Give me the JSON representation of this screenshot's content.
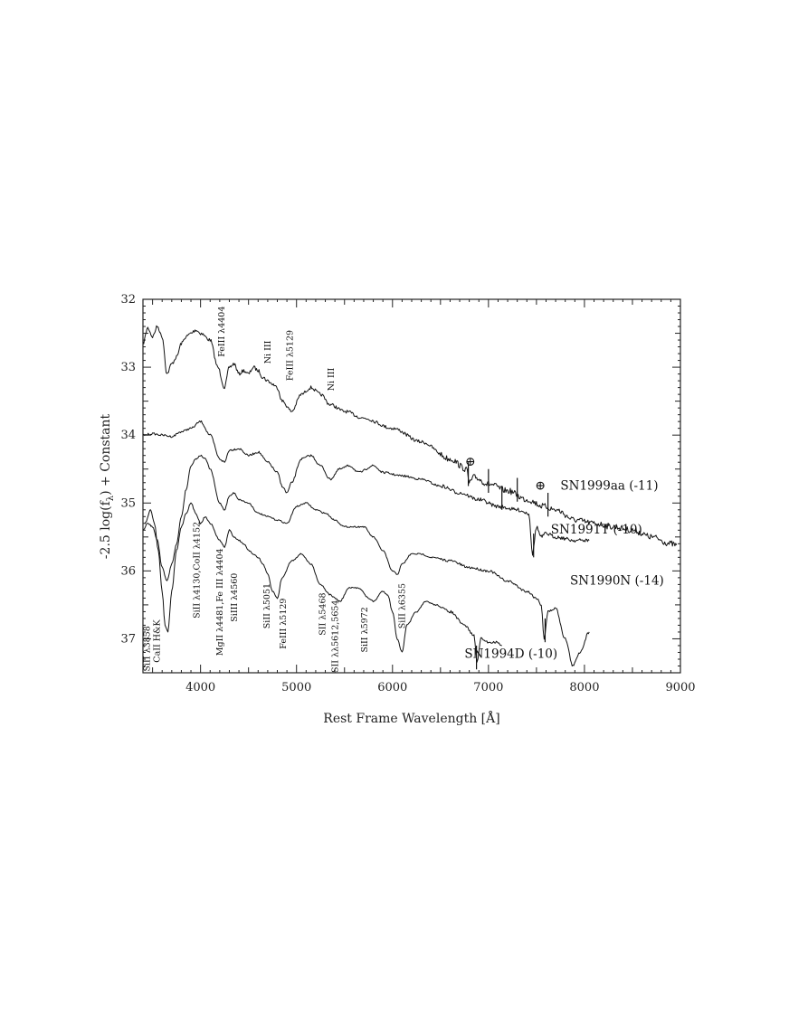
{
  "chart_data": {
    "type": "line",
    "title": "",
    "xlabel": "Rest Frame Wavelength [Å]",
    "ylabel": "-2.5 log(f_λ) + Constant",
    "ylabel_parts": {
      "pre": "-2.5 log(f",
      "sub": "λ",
      "post": ") + Constant"
    },
    "xlim": [
      3400,
      9000
    ],
    "ylim": [
      37.5,
      32
    ],
    "y_inverted": true,
    "grid": false,
    "x_ticks": [
      {
        "value": 4000,
        "label": "4000"
      },
      {
        "value": 5000,
        "label": "5000"
      },
      {
        "value": 6000,
        "label": "6000"
      },
      {
        "value": 7000,
        "label": "7000"
      },
      {
        "value": 8000,
        "label": "8000"
      },
      {
        "value": 9000,
        "label": "9000"
      }
    ],
    "y_ticks": [
      {
        "value": 32,
        "label": "32"
      },
      {
        "value": 33,
        "label": "33"
      },
      {
        "value": 34,
        "label": "34"
      },
      {
        "value": 35,
        "label": "35"
      },
      {
        "value": 36,
        "label": "36"
      },
      {
        "value": 37,
        "label": "37"
      }
    ],
    "series": [
      {
        "name": "SN1999aa (-11)",
        "label_at": {
          "x": 7750,
          "y": 34.8
        },
        "noise": 0.05,
        "points": [
          [
            3400,
            32.65
          ],
          [
            3450,
            32.42
          ],
          [
            3500,
            32.55
          ],
          [
            3550,
            32.4
          ],
          [
            3600,
            32.55
          ],
          [
            3650,
            33.1
          ],
          [
            3700,
            32.95
          ],
          [
            3750,
            32.85
          ],
          [
            3800,
            32.65
          ],
          [
            3850,
            32.55
          ],
          [
            3900,
            32.5
          ],
          [
            3950,
            32.45
          ],
          [
            4000,
            32.5
          ],
          [
            4100,
            32.6
          ],
          [
            4180,
            33.0
          ],
          [
            4250,
            33.3
          ],
          [
            4300,
            33.0
          ],
          [
            4350,
            32.95
          ],
          [
            4400,
            33.1
          ],
          [
            4450,
            33.05
          ],
          [
            4500,
            33.1
          ],
          [
            4550,
            33.0
          ],
          [
            4600,
            33.05
          ],
          [
            4650,
            33.15
          ],
          [
            4700,
            33.2
          ],
          [
            4750,
            33.25
          ],
          [
            4800,
            33.3
          ],
          [
            4850,
            33.5
          ],
          [
            4950,
            33.65
          ],
          [
            5050,
            33.4
          ],
          [
            5150,
            33.3
          ],
          [
            5250,
            33.4
          ],
          [
            5350,
            33.55
          ],
          [
            5500,
            33.65
          ],
          [
            5700,
            33.75
          ],
          [
            6000,
            33.9
          ],
          [
            6300,
            34.1
          ],
          [
            6600,
            34.35
          ],
          [
            6770,
            34.5
          ],
          [
            6800,
            34.7
          ],
          [
            6850,
            34.62
          ],
          [
            7000,
            34.72
          ],
          [
            7200,
            34.82
          ],
          [
            7400,
            34.95
          ],
          [
            7580,
            35.05
          ],
          [
            7700,
            35.1
          ],
          [
            7900,
            35.25
          ],
          [
            8100,
            35.3
          ],
          [
            8300,
            35.35
          ],
          [
            8500,
            35.4
          ],
          [
            8700,
            35.5
          ],
          [
            8900,
            35.6
          ],
          [
            8960,
            35.62
          ]
        ],
        "spikes": [
          [
            6790,
            34.75
          ],
          [
            7000,
            34.85
          ],
          [
            7300,
            34.98
          ],
          [
            7620,
            35.2
          ]
        ]
      },
      {
        "name": "SN1991T (-10)",
        "label_at": {
          "x": 7650,
          "y": 35.45
        },
        "noise": 0.03,
        "points": [
          [
            3400,
            34.0
          ],
          [
            3500,
            33.98
          ],
          [
            3600,
            34.0
          ],
          [
            3700,
            34.02
          ],
          [
            3800,
            33.95
          ],
          [
            3900,
            33.9
          ],
          [
            4000,
            33.8
          ],
          [
            4100,
            34.0
          ],
          [
            4200,
            34.35
          ],
          [
            4250,
            34.4
          ],
          [
            4300,
            34.22
          ],
          [
            4400,
            34.2
          ],
          [
            4500,
            34.3
          ],
          [
            4600,
            34.25
          ],
          [
            4700,
            34.4
          ],
          [
            4800,
            34.55
          ],
          [
            4850,
            34.75
          ],
          [
            4900,
            34.85
          ],
          [
            4950,
            34.7
          ],
          [
            5050,
            34.35
          ],
          [
            5150,
            34.3
          ],
          [
            5250,
            34.45
          ],
          [
            5350,
            34.65
          ],
          [
            5450,
            34.5
          ],
          [
            5550,
            34.45
          ],
          [
            5650,
            34.55
          ],
          [
            5800,
            34.45
          ],
          [
            5900,
            34.55
          ],
          [
            6100,
            34.6
          ],
          [
            6300,
            34.65
          ],
          [
            6500,
            34.75
          ],
          [
            6700,
            34.85
          ],
          [
            6900,
            34.95
          ],
          [
            7100,
            35.05
          ],
          [
            7300,
            35.1
          ],
          [
            7420,
            35.15
          ],
          [
            7460,
            35.75
          ],
          [
            7500,
            35.35
          ],
          [
            7550,
            35.5
          ],
          [
            7600,
            35.45
          ],
          [
            7700,
            35.5
          ],
          [
            7900,
            35.55
          ],
          [
            8050,
            35.55
          ]
        ],
        "spikes": [
          [
            7470,
            35.8
          ],
          [
            7140,
            35.1
          ]
        ]
      },
      {
        "name": "SN1990N (-14)",
        "label_at": {
          "x": 7850,
          "y": 36.2
        },
        "noise": 0.02,
        "points": [
          [
            3400,
            35.4
          ],
          [
            3450,
            35.3
          ],
          [
            3500,
            35.35
          ],
          [
            3550,
            35.55
          ],
          [
            3600,
            35.95
          ],
          [
            3650,
            36.15
          ],
          [
            3700,
            35.9
          ],
          [
            3750,
            35.6
          ],
          [
            3800,
            35.2
          ],
          [
            3850,
            34.8
          ],
          [
            3900,
            34.45
          ],
          [
            3950,
            34.35
          ],
          [
            4000,
            34.3
          ],
          [
            4050,
            34.35
          ],
          [
            4100,
            34.5
          ],
          [
            4200,
            35.0
          ],
          [
            4250,
            35.1
          ],
          [
            4300,
            34.9
          ],
          [
            4350,
            34.85
          ],
          [
            4400,
            34.95
          ],
          [
            4500,
            35.0
          ],
          [
            4600,
            35.15
          ],
          [
            4700,
            35.2
          ],
          [
            4800,
            35.25
          ],
          [
            4900,
            35.3
          ],
          [
            5000,
            35.05
          ],
          [
            5100,
            35.0
          ],
          [
            5200,
            35.1
          ],
          [
            5300,
            35.15
          ],
          [
            5400,
            35.25
          ],
          [
            5500,
            35.35
          ],
          [
            5600,
            35.35
          ],
          [
            5700,
            35.35
          ],
          [
            5800,
            35.5
          ],
          [
            5900,
            35.7
          ],
          [
            6000,
            36.0
          ],
          [
            6050,
            36.05
          ],
          [
            6100,
            35.9
          ],
          [
            6200,
            35.75
          ],
          [
            6300,
            35.75
          ],
          [
            6400,
            35.8
          ],
          [
            6600,
            35.85
          ],
          [
            6800,
            35.95
          ],
          [
            7000,
            36.0
          ],
          [
            7200,
            36.15
          ],
          [
            7400,
            36.3
          ],
          [
            7500,
            36.4
          ],
          [
            7550,
            36.5
          ],
          [
            7580,
            37.0
          ],
          [
            7620,
            36.6
          ],
          [
            7700,
            36.55
          ],
          [
            7800,
            37.0
          ],
          [
            7880,
            37.4
          ],
          [
            7950,
            37.2
          ],
          [
            8050,
            36.9
          ]
        ],
        "spikes": [
          [
            7590,
            37.05
          ]
        ]
      },
      {
        "name": "SN1994D (-10)",
        "label_at": {
          "x": 6750,
          "y": 37.28
        },
        "noise": 0.02,
        "points": [
          [
            3420,
            35.3
          ],
          [
            3480,
            35.1
          ],
          [
            3520,
            35.3
          ],
          [
            3560,
            35.7
          ],
          [
            3600,
            36.3
          ],
          [
            3630,
            36.8
          ],
          [
            3660,
            36.9
          ],
          [
            3700,
            36.3
          ],
          [
            3750,
            35.7
          ],
          [
            3800,
            35.35
          ],
          [
            3850,
            35.15
          ],
          [
            3900,
            35.0
          ],
          [
            3950,
            35.15
          ],
          [
            4000,
            35.3
          ],
          [
            4050,
            35.2
          ],
          [
            4100,
            35.3
          ],
          [
            4200,
            35.55
          ],
          [
            4250,
            35.65
          ],
          [
            4300,
            35.4
          ],
          [
            4350,
            35.5
          ],
          [
            4400,
            35.55
          ],
          [
            4450,
            35.6
          ],
          [
            4500,
            35.7
          ],
          [
            4550,
            35.75
          ],
          [
            4600,
            35.8
          ],
          [
            4650,
            35.9
          ],
          [
            4700,
            36.05
          ],
          [
            4750,
            36.3
          ],
          [
            4800,
            36.4
          ],
          [
            4850,
            36.1
          ],
          [
            4950,
            35.85
          ],
          [
            5050,
            35.75
          ],
          [
            5150,
            35.9
          ],
          [
            5250,
            36.2
          ],
          [
            5350,
            36.35
          ],
          [
            5400,
            36.4
          ],
          [
            5450,
            36.45
          ],
          [
            5550,
            36.25
          ],
          [
            5650,
            36.25
          ],
          [
            5750,
            36.4
          ],
          [
            5800,
            36.45
          ],
          [
            5900,
            36.3
          ],
          [
            5950,
            36.35
          ],
          [
            6000,
            36.6
          ],
          [
            6050,
            37.0
          ],
          [
            6100,
            37.2
          ],
          [
            6150,
            36.8
          ],
          [
            6250,
            36.6
          ],
          [
            6350,
            36.45
          ],
          [
            6450,
            36.5
          ],
          [
            6600,
            36.6
          ],
          [
            6750,
            36.8
          ],
          [
            6850,
            36.95
          ],
          [
            6880,
            37.35
          ],
          [
            6920,
            37.0
          ],
          [
            7000,
            37.05
          ],
          [
            7100,
            37.05
          ],
          [
            7140,
            37.1
          ]
        ],
        "spikes": [
          [
            6875,
            37.45
          ]
        ]
      }
    ],
    "annotations": [
      {
        "text": "SiII λ3858",
        "x": 3470,
        "y": 37.48
      },
      {
        "text": "CaII H&K",
        "x": 3575,
        "y": 37.35
      },
      {
        "text": "SiII λ4130,CoII λ4152",
        "x": 3990,
        "y": 36.7
      },
      {
        "text": "MgII λ4481,Fe III λ4404",
        "x": 4230,
        "y": 37.25
      },
      {
        "text": "SiIII λ4560",
        "x": 4380,
        "y": 36.75
      },
      {
        "text": "SiII λ5051",
        "x": 4720,
        "y": 36.85
      },
      {
        "text": "FeIII λ5129",
        "x": 4890,
        "y": 37.15
      },
      {
        "text": "SII λ5468",
        "x": 5300,
        "y": 36.95
      },
      {
        "text": "SII λλ5612,5654",
        "x": 5430,
        "y": 37.5
      },
      {
        "text": "SiII λ5972",
        "x": 5740,
        "y": 37.2
      },
      {
        "text": "SiII λ6355",
        "x": 6130,
        "y": 36.85
      },
      {
        "text": "FeIII λ4404",
        "x": 4250,
        "y": 32.85
      },
      {
        "text": "Ni III",
        "x": 4730,
        "y": 32.95
      },
      {
        "text": "FeIII λ5129",
        "x": 4960,
        "y": 33.2
      },
      {
        "text": "Ni III",
        "x": 5390,
        "y": 33.35
      }
    ],
    "telluric_markers": [
      {
        "symbol": "⊕",
        "x": 6810,
        "y": 34.45
      },
      {
        "symbol": "⊕",
        "x": 7540,
        "y": 34.8
      }
    ]
  }
}
